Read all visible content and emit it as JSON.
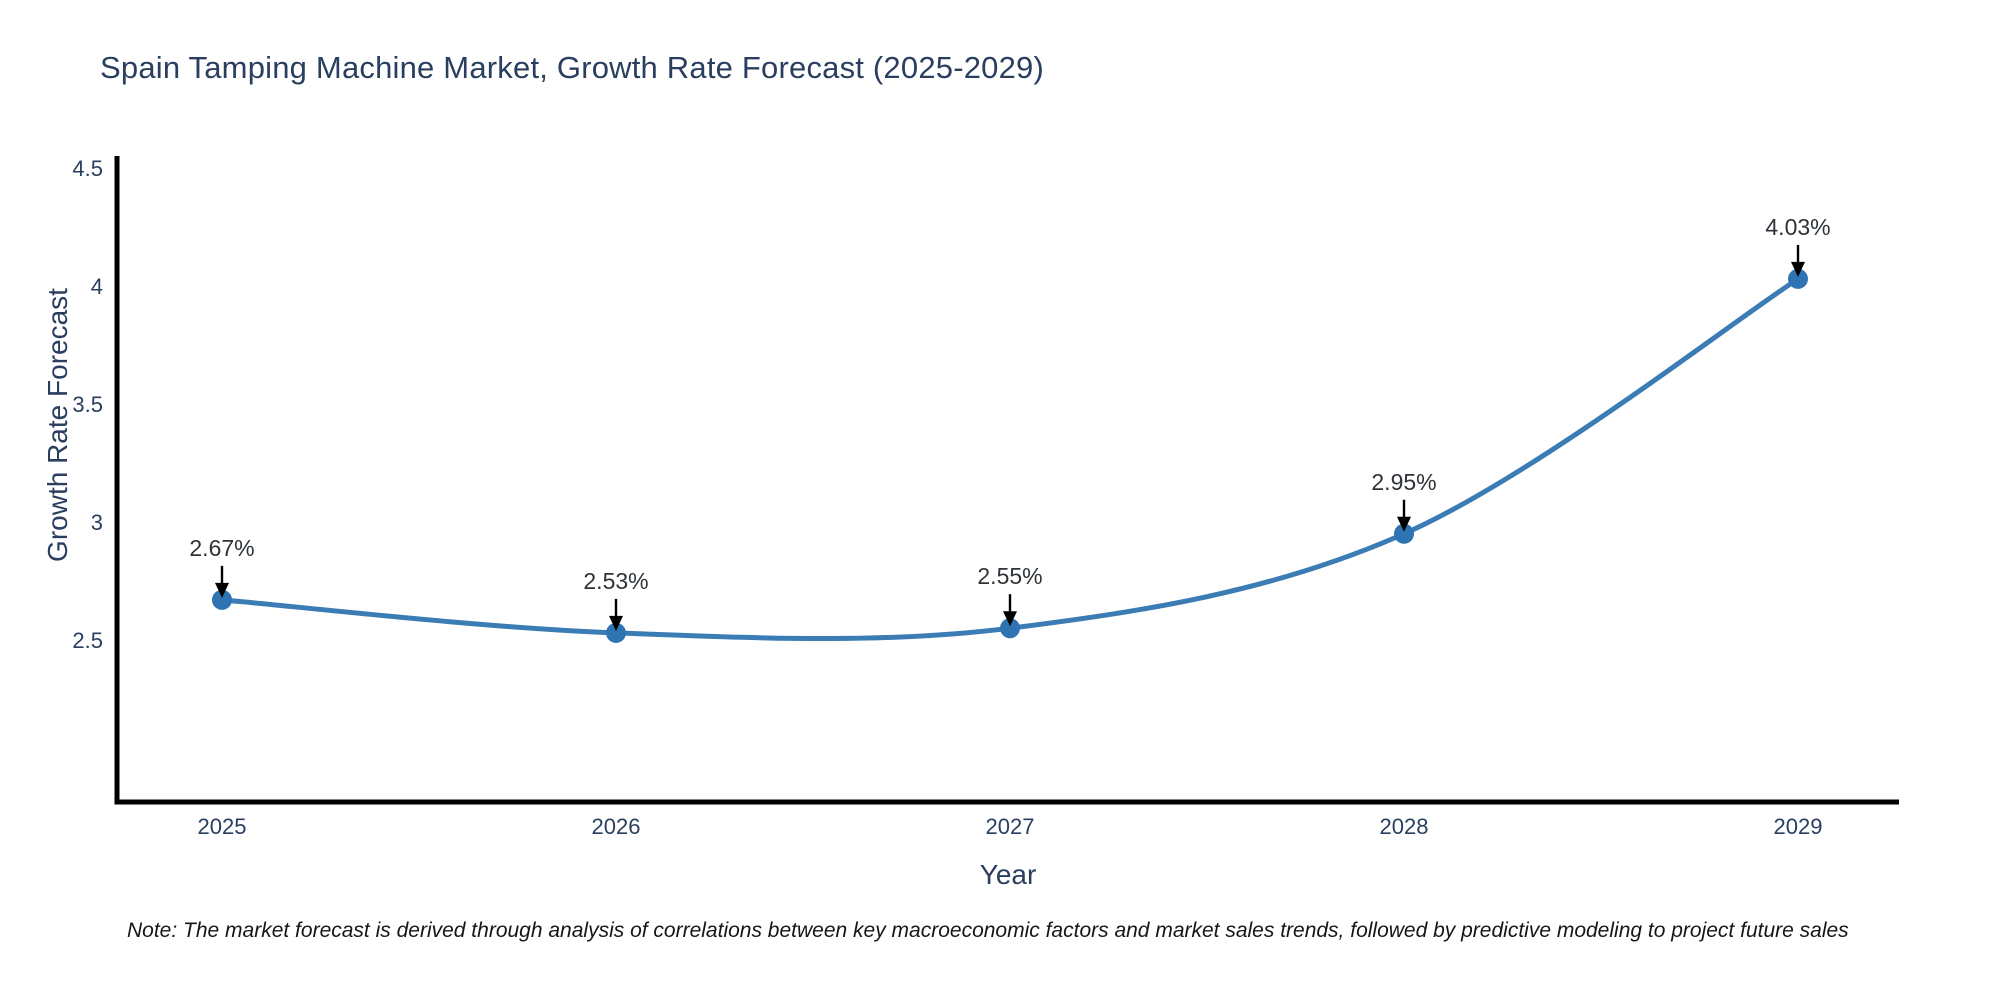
{
  "title": "Spain Tamping Machine Market, Growth Rate Forecast (2025-2029)",
  "note": "Note: The market forecast is derived through analysis of correlations between key macroeconomic factors and market sales trends, followed by predictive modeling to project future sales",
  "chart_data": {
    "type": "line",
    "title": "Spain Tamping Machine Market, Growth Rate Forecast (2025-2029)",
    "xlabel": "Year",
    "ylabel": "Growth Rate Forecast",
    "categories": [
      "2025",
      "2026",
      "2027",
      "2028",
      "2029"
    ],
    "series": [
      {
        "name": "Growth Rate Forecast",
        "values": [
          2.67,
          2.53,
          2.55,
          2.95,
          4.03
        ],
        "point_labels": [
          "2.67%",
          "2.53%",
          "2.55%",
          "2.95%",
          "4.03%"
        ]
      }
    ],
    "ytick_labels": [
      "2.5",
      "3",
      "3.5",
      "4",
      "4.5"
    ],
    "ytick_values": [
      2.5,
      3.0,
      3.5,
      4.0,
      4.5
    ],
    "ylim": [
      1.81,
      4.54
    ],
    "grid": false,
    "legend": "none",
    "line_shape": "spline",
    "annotations_have_arrows": true,
    "colors": {
      "line": "#3b7cb5",
      "marker": "#2e73b2",
      "axis_line": "#000000",
      "axis_text": "#2a3f5f",
      "annotation_text": "#2e3338",
      "arrow": "#000000",
      "note_text": "#161616",
      "background": "#ffffff"
    }
  }
}
